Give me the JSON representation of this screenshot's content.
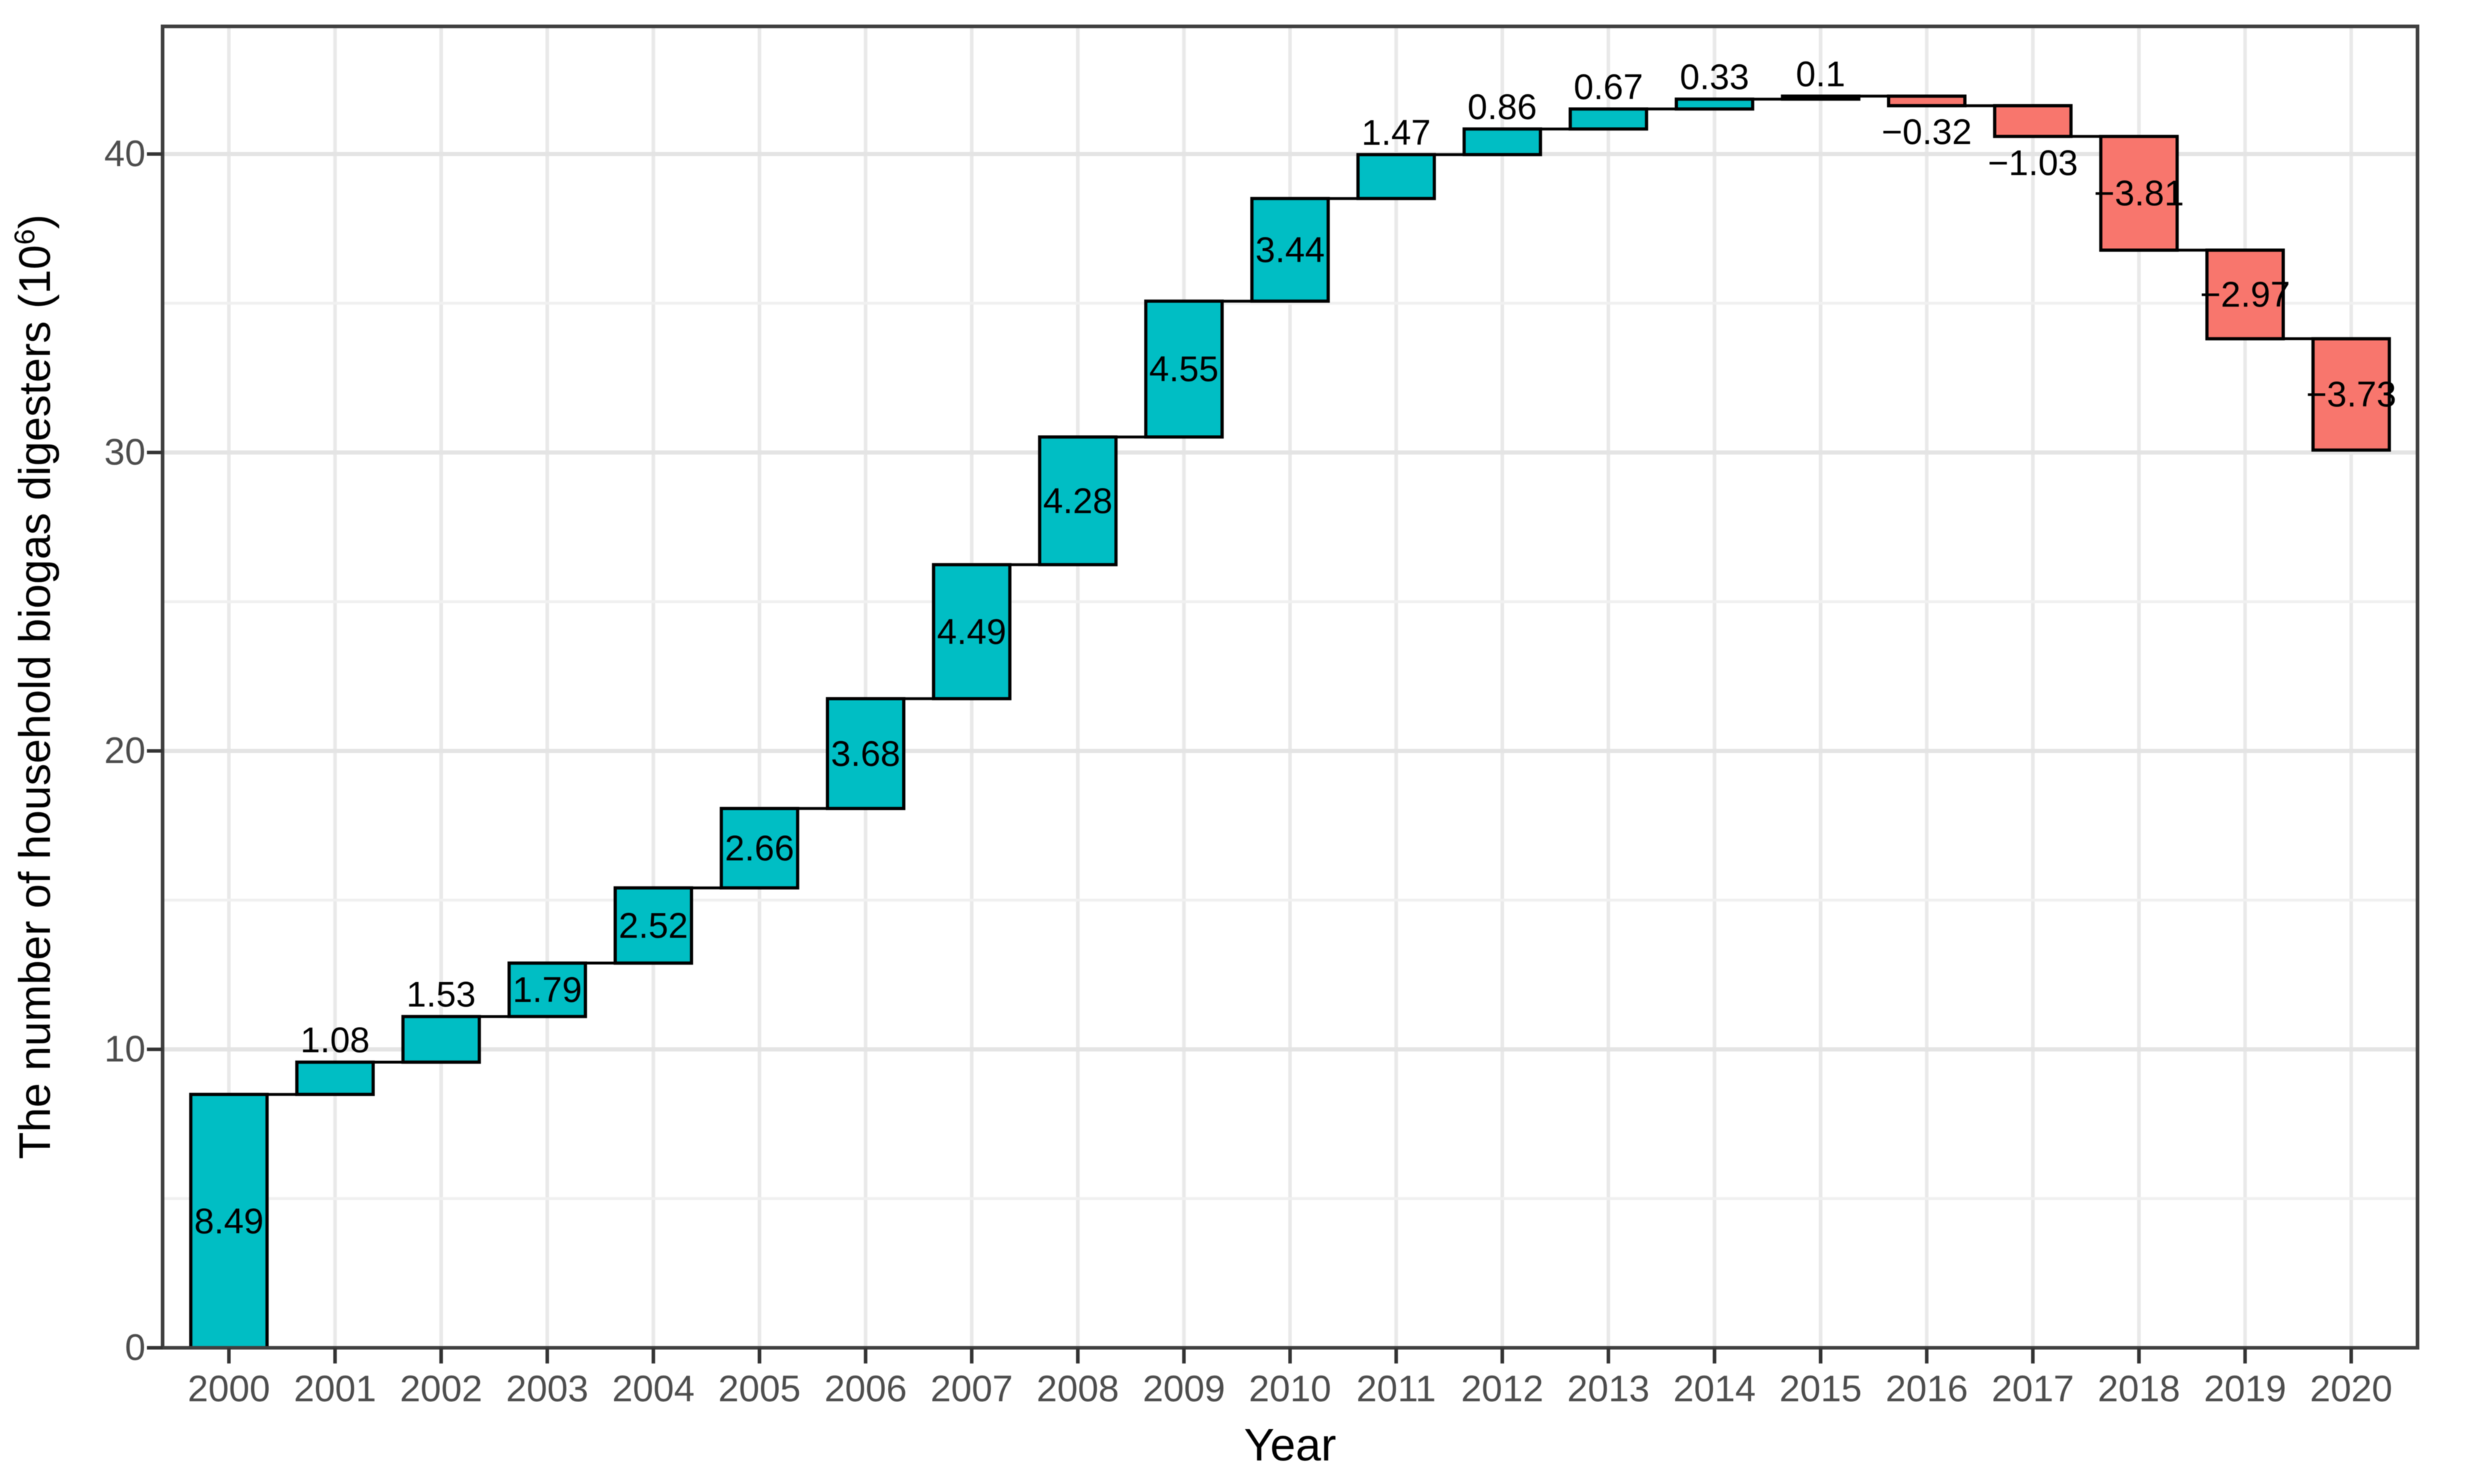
{
  "figure": {
    "background_color": "#ffffff",
    "panel_background_color": "#ffffff",
    "panel_border_color": "#404040",
    "grid_major_color": "#e4e4e4",
    "grid_minor_color": "#f0f0f0",
    "grid_vertical_color": "#e9e9e9",
    "tick_color": "#333333",
    "tick_label_color": "#4d4d4d",
    "axis_title_color": "#000000",
    "bar_label_color": "#000000"
  },
  "chart_data": {
    "type": "bar",
    "subtype": "waterfall",
    "title": "",
    "xlabel": "Year",
    "ylabel": "The number of household biogas digesters (10⁶)",
    "ylabel_parts": {
      "prefix": "The number of household biogas digesters (10",
      "superscript": "6",
      "suffix": ")"
    },
    "categories": [
      "2000",
      "2001",
      "2002",
      "2003",
      "2004",
      "2005",
      "2006",
      "2007",
      "2008",
      "2009",
      "2010",
      "2011",
      "2012",
      "2013",
      "2014",
      "2015",
      "2016",
      "2017",
      "2018",
      "2019",
      "2020"
    ],
    "values": [
      8.49,
      1.08,
      1.53,
      1.79,
      2.52,
      2.66,
      3.68,
      4.49,
      4.28,
      4.55,
      3.44,
      1.47,
      0.86,
      0.67,
      0.33,
      0.1,
      -0.32,
      -1.03,
      -3.81,
      -2.97,
      -3.73
    ],
    "labels": [
      "8.49",
      "1.08",
      "1.53",
      "1.79",
      "2.52",
      "2.66",
      "3.68",
      "4.49",
      "4.28",
      "4.55",
      "3.44",
      "1.47",
      "0.86",
      "0.67",
      "0.33",
      "0.1",
      "−0.32",
      "−1.03",
      "−3.81",
      "−2.97",
      "−3.73"
    ],
    "cumulative_end": [
      8.49,
      9.57,
      11.1,
      12.89,
      15.41,
      18.07,
      21.75,
      26.24,
      30.52,
      35.07,
      38.51,
      39.98,
      40.84,
      41.51,
      41.84,
      41.94,
      41.62,
      40.59,
      36.78,
      33.81,
      30.08
    ],
    "y_ticks": [
      0,
      10,
      20,
      30,
      40
    ],
    "y_tick_labels": [
      "0",
      "10",
      "20",
      "30",
      "40"
    ],
    "y_minor_ticks": [
      5,
      15,
      25,
      35
    ],
    "ylim": [
      0,
      44.2
    ],
    "grid": true,
    "legend": false,
    "positive_color": "#00bec4",
    "negative_color": "#f8766d",
    "bar_border_color": "#000000",
    "connector_color": "#000000",
    "label_inside_threshold": 1.7
  }
}
